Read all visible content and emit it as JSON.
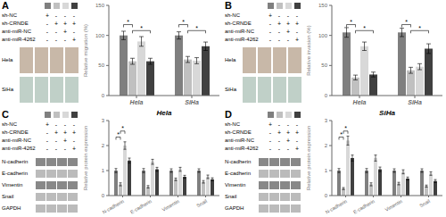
{
  "chart_data": [
    {
      "type": "bar",
      "panel_label": "A",
      "ylabel": "Relative migration (%)",
      "categories": [
        "Hela",
        "SiHa"
      ],
      "series": [
        {
          "color": "#7f7f7f",
          "values": [
            100,
            100
          ],
          "errors": [
            7,
            6
          ]
        },
        {
          "color": "#c0c0c0",
          "values": [
            57,
            60
          ],
          "errors": [
            5,
            5
          ]
        },
        {
          "color": "#d8d8d8",
          "values": [
            90,
            58
          ],
          "errors": [
            8,
            5
          ]
        },
        {
          "color": "#404040",
          "values": [
            57,
            82
          ],
          "errors": [
            5,
            7
          ]
        }
      ],
      "ylim": [
        0,
        150
      ],
      "yticks": [
        0,
        50,
        100,
        150
      ],
      "significance": [
        {
          "category": "Hela",
          "series": [
            0,
            1
          ],
          "y": 118,
          "label": "*"
        },
        {
          "category": "Hela",
          "series": [
            1,
            3
          ],
          "y": 108,
          "label": "*"
        },
        {
          "category": "SiHa",
          "series": [
            0,
            1
          ],
          "y": 118,
          "label": "*"
        },
        {
          "category": "SiHa",
          "series": [
            1,
            3
          ],
          "y": 108,
          "label": "*"
        }
      ],
      "conditions": {
        "labels": [
          "sh-NC",
          "sh-CRNDE",
          "anti-miR-NC",
          "anti-miR-4262"
        ],
        "marks": [
          [
            "+",
            "-",
            "-",
            "-"
          ],
          [
            "-",
            "+",
            "+",
            "+"
          ],
          [
            "-",
            "-",
            "+",
            "-"
          ],
          [
            "-",
            "-",
            "-",
            "+"
          ]
        ]
      },
      "images": {
        "rows": [
          "Hela",
          "SiHa"
        ],
        "colors": [
          "#c8b8a8",
          "#c0d0c8"
        ]
      }
    },
    {
      "type": "bar",
      "panel_label": "B",
      "ylabel": "Relative invasion (%)",
      "categories": [
        "Hela",
        "SiHa"
      ],
      "series": [
        {
          "color": "#7f7f7f",
          "values": [
            105,
            105
          ],
          "errors": [
            8,
            7
          ]
        },
        {
          "color": "#c0c0c0",
          "values": [
            30,
            42
          ],
          "errors": [
            4,
            5
          ]
        },
        {
          "color": "#d8d8d8",
          "values": [
            82,
            48
          ],
          "errors": [
            7,
            5
          ]
        },
        {
          "color": "#404040",
          "values": [
            35,
            78
          ],
          "errors": [
            4,
            8
          ]
        }
      ],
      "ylim": [
        0,
        150
      ],
      "yticks": [
        0,
        50,
        100,
        150
      ],
      "significance": [
        {
          "category": "Hela",
          "series": [
            0,
            1
          ],
          "y": 118,
          "label": "*"
        },
        {
          "category": "Hela",
          "series": [
            1,
            3
          ],
          "y": 108,
          "label": "*"
        },
        {
          "category": "SiHa",
          "series": [
            0,
            1
          ],
          "y": 118,
          "label": "*"
        },
        {
          "category": "SiHa",
          "series": [
            1,
            3
          ],
          "y": 108,
          "label": "*"
        }
      ],
      "conditions": {
        "labels": [
          "sh-NC",
          "sh-CRNDE",
          "anti-miR-NC",
          "anti-miR-4262"
        ],
        "marks": [
          [
            "+",
            "-",
            "-",
            "-"
          ],
          [
            "-",
            "+",
            "+",
            "+"
          ],
          [
            "-",
            "-",
            "+",
            "-"
          ],
          [
            "-",
            "-",
            "-",
            "+"
          ]
        ]
      },
      "images": {
        "rows": [
          "Hela",
          "SiHa"
        ],
        "colors": [
          "#c8b8a8",
          "#c0d0c8"
        ]
      }
    },
    {
      "type": "bar",
      "panel_label": "C",
      "title": "Hela",
      "ylabel": "Relative protein expression",
      "categories": [
        "N-cadherin",
        "E-cadherin",
        "Vimentin",
        "Snail"
      ],
      "series": [
        {
          "color": "#7f7f7f",
          "values": [
            1.0,
            1.0,
            1.0,
            1.0
          ],
          "errors": [
            0.08,
            0.08,
            0.07,
            0.07
          ]
        },
        {
          "color": "#c0c0c0",
          "values": [
            0.45,
            0.35,
            0.65,
            0.55
          ],
          "errors": [
            0.06,
            0.05,
            0.05,
            0.05
          ]
        },
        {
          "color": "#d8d8d8",
          "values": [
            2.0,
            1.35,
            1.05,
            0.75
          ],
          "errors": [
            0.15,
            0.1,
            0.08,
            0.07
          ]
        },
        {
          "color": "#404040",
          "values": [
            1.4,
            1.05,
            0.75,
            0.65
          ],
          "errors": [
            0.1,
            0.08,
            0.06,
            0.06
          ]
        }
      ],
      "ylim": [
        0,
        3
      ],
      "yticks": [
        0,
        1,
        2,
        3
      ],
      "significance": [
        {
          "category": "N-cadherin",
          "series": [
            0,
            1
          ],
          "y": 2.34,
          "label": "*"
        },
        {
          "category": "N-cadherin",
          "series": [
            1,
            2
          ],
          "y": 2.58,
          "label": "*"
        }
      ],
      "conditions": {
        "labels": [
          "sh-NC",
          "sh-CRNDE",
          "anti-miR-NC",
          "anti-miR-4262"
        ],
        "marks": [
          [
            "+",
            "-",
            "-",
            "-"
          ],
          [
            "-",
            "+",
            "+",
            "+"
          ],
          [
            "-",
            "-",
            "+",
            "-"
          ],
          [
            "-",
            "-",
            "-",
            "+"
          ]
        ]
      },
      "blot": {
        "proteins": [
          "N-cadherin",
          "E-cadherin",
          "Vimentin",
          "Snail",
          "GAPDH"
        ],
        "colors": [
          "#888888",
          "#bbbbbb",
          "#888888",
          "#bbbbbb",
          "#bbbbbb"
        ]
      }
    },
    {
      "type": "bar",
      "panel_label": "D",
      "title": "SiHa",
      "ylabel": "Relative protein expression",
      "categories": [
        "N-cadherin",
        "E-cadherin",
        "Vimentin",
        "Snail"
      ],
      "series": [
        {
          "color": "#7f7f7f",
          "values": [
            1.0,
            1.0,
            1.0,
            1.0
          ],
          "errors": [
            0.08,
            0.08,
            0.07,
            0.07
          ]
        },
        {
          "color": "#c0c0c0",
          "values": [
            0.28,
            0.45,
            0.48,
            0.38
          ],
          "errors": [
            0.04,
            0.06,
            0.05,
            0.04
          ]
        },
        {
          "color": "#d8d8d8",
          "values": [
            2.2,
            1.5,
            0.95,
            0.88
          ],
          "errors": [
            0.18,
            0.12,
            0.08,
            0.07
          ]
        },
        {
          "color": "#404040",
          "values": [
            1.5,
            1.05,
            0.68,
            0.58
          ],
          "errors": [
            0.12,
            0.09,
            0.06,
            0.06
          ]
        }
      ],
      "ylim": [
        0,
        3
      ],
      "yticks": [
        0,
        1,
        2,
        3
      ],
      "significance": [
        {
          "category": "N-cadherin",
          "series": [
            0,
            1
          ],
          "y": 2.34,
          "label": "*"
        },
        {
          "category": "N-cadherin",
          "series": [
            1,
            2
          ],
          "y": 2.58,
          "label": "*"
        }
      ],
      "conditions": {
        "labels": [
          "sh-NC",
          "sh-CRNDE",
          "anti-miR-NC",
          "anti-miR-4262"
        ],
        "marks": [
          [
            "+",
            "-",
            "-",
            "-"
          ],
          [
            "-",
            "+",
            "+",
            "+"
          ],
          [
            "-",
            "-",
            "+",
            "-"
          ],
          [
            "-",
            "-",
            "-",
            "+"
          ]
        ]
      },
      "blot": {
        "proteins": [
          "N-cadherin",
          "E-cadherin",
          "Vimentin",
          "Snail",
          "GAPDH"
        ],
        "colors": [
          "#888888",
          "#bbbbbb",
          "#888888",
          "#bbbbbb",
          "#bbbbbb"
        ]
      }
    }
  ]
}
